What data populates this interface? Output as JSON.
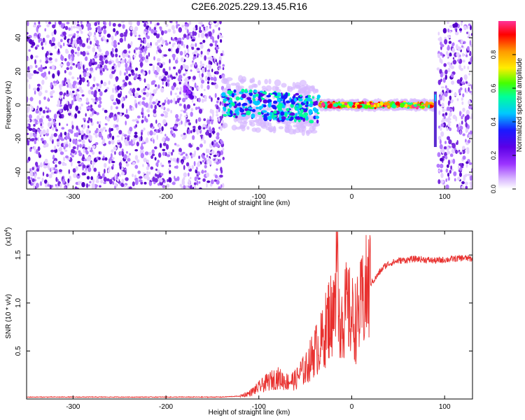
{
  "title": "C2E6.2025.229.13.45.R16",
  "colors": {
    "snr_line": "#e8302e",
    "spectrogram_scatter": "#7a2be0",
    "colormap": [
      "#ffffff",
      "#d9b8ff",
      "#9b33ff",
      "#5b00e6",
      "#1a1aff",
      "#00c8ff",
      "#00ff9a",
      "#44ff00",
      "#ffee00",
      "#ff9900",
      "#ff0000",
      "#ff3399"
    ]
  },
  "chart_data": [
    {
      "type": "heatmap",
      "name": "spectrogram",
      "xlabel": "Height of straight line (km)",
      "ylabel": "Frequency (Hz)",
      "xlim": [
        -350,
        130
      ],
      "ylim": [
        -50,
        50
      ],
      "xticks": [
        -300,
        -200,
        -100,
        0,
        100
      ],
      "yticks": [
        -40,
        -20,
        0,
        20,
        40
      ],
      "colorbar": {
        "label": "Normalized spectral amplitude",
        "range": [
          0.0,
          1.0
        ],
        "ticks": [
          "0.0",
          "0.2",
          "0.4",
          "0.6",
          "0.8"
        ]
      },
      "regions": [
        {
          "x_start": -350,
          "x_end": -138,
          "pattern": "noise",
          "freq_range": [
            -50,
            50
          ],
          "amplitude": 0.15
        },
        {
          "x_start": -180,
          "x_end": -172,
          "pattern": "trace",
          "freq_range": [
            3,
            8
          ],
          "amplitude": 0.25
        },
        {
          "x_start": -138,
          "x_end": -35,
          "pattern": "trace",
          "freq_range": [
            -15,
            10
          ],
          "amplitude": 0.5
        },
        {
          "x_start": -35,
          "x_end": 88,
          "pattern": "trace",
          "freq_range": [
            -2,
            2
          ],
          "amplitude": 0.9
        },
        {
          "x_start": 88,
          "x_end": 92,
          "pattern": "spike",
          "freq_range": [
            -25,
            8
          ],
          "amplitude": 0.4
        },
        {
          "x_start": 93,
          "x_end": 130,
          "pattern": "noise",
          "freq_range": [
            -50,
            50
          ],
          "amplitude": 0.15
        }
      ]
    },
    {
      "type": "line",
      "name": "snr",
      "xlabel": "Height of straight line (km)",
      "ylabel": "SNR (10 * v/v)",
      "y_multiplier_label": "(x10",
      "y_multiplier_exp": "4",
      "xlim": [
        -350,
        130
      ],
      "ylim": [
        0,
        1.75
      ],
      "xticks": [
        -300,
        -200,
        -100,
        0,
        100
      ],
      "yticks": [
        0.5,
        1.0,
        1.5
      ],
      "ytick_labels": [
        "0.5",
        "1.0",
        "1.5"
      ],
      "series": [
        {
          "x": [
            -350,
            -300,
            -250,
            -200,
            -160,
            -140,
            -120,
            -110,
            -100,
            -90,
            -80,
            -70,
            -60,
            -55,
            -50,
            -45,
            -40,
            -35,
            -30,
            -25,
            -20,
            -15,
            -10,
            -5,
            0,
            5,
            10,
            15,
            20,
            25,
            30,
            35,
            40,
            50,
            60,
            70,
            80,
            90,
            100,
            110,
            120,
            130
          ],
          "y": [
            0.02,
            0.02,
            0.02,
            0.02,
            0.02,
            0.02,
            0.03,
            0.06,
            0.12,
            0.18,
            0.22,
            0.18,
            0.2,
            0.28,
            0.3,
            0.4,
            0.5,
            0.55,
            0.65,
            0.85,
            0.9,
            1.0,
            0.85,
            0.95,
            0.85,
            0.8,
            0.95,
            1.1,
            1.2,
            1.25,
            1.32,
            1.38,
            1.41,
            1.44,
            1.45,
            1.46,
            1.45,
            1.44,
            1.45,
            1.46,
            1.47,
            1.46
          ]
        }
      ]
    }
  ]
}
